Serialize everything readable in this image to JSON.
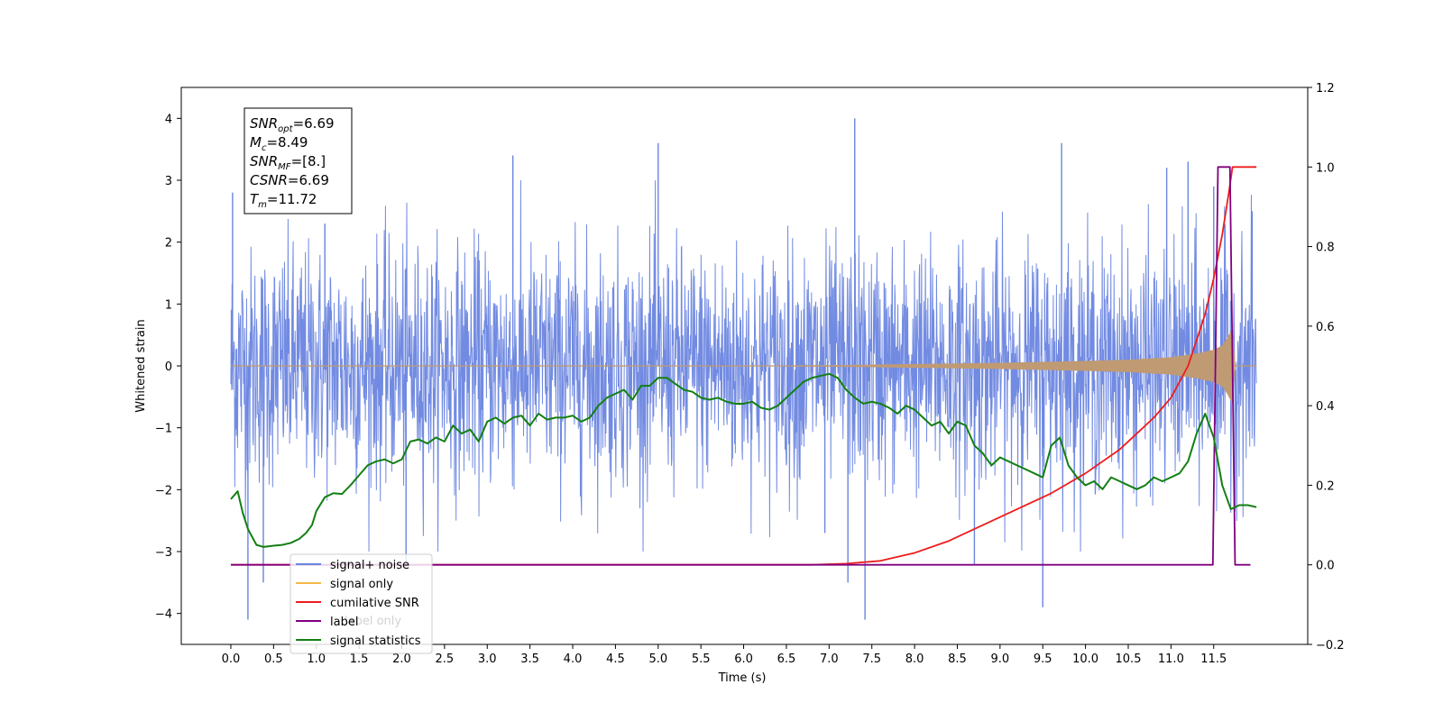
{
  "chart_data": {
    "type": "line",
    "xlabel": "Time (s)",
    "ylabel_left": "Whitened strain",
    "ylabel_right": "",
    "x_ticks": [
      "0.0",
      "0.5",
      "1.0",
      "1.5",
      "2.0",
      "2.5",
      "3.0",
      "3.5",
      "4.0",
      "4.5",
      "5.0",
      "5.5",
      "6.0",
      "6.5",
      "7.0",
      "7.5",
      "8.0",
      "8.5",
      "9.0",
      "9.5",
      "10.0",
      "10.5",
      "11.0",
      "11.5"
    ],
    "xlim": [
      -0.58,
      12.6
    ],
    "ylim_left": [
      -4.5,
      4.5
    ],
    "ylim_right": [
      -0.2,
      1.2
    ],
    "y_ticks_left": [
      "4",
      "3",
      "2",
      "1",
      "0",
      "−1",
      "−2",
      "−3",
      "−4"
    ],
    "y_ticks_right": [
      "1.2",
      "1.0",
      "0.8",
      "0.6",
      "0.4",
      "0.2",
      "0.0",
      "−0.2"
    ],
    "grid": false,
    "legend": {
      "placement": "lower-left",
      "entries": [
        {
          "label": "signal+ noise",
          "color": "#6a85e0"
        },
        {
          "label": "signal only",
          "color": "#f5b84a"
        },
        {
          "label": "cumilative SNR",
          "color": "#ee1c1c"
        },
        {
          "label": "label",
          "color": "#800080"
        },
        {
          "label": "signal statistics",
          "color": "#137f13"
        }
      ],
      "hidden_overlapped_text": [
        "label only"
      ]
    },
    "annotation": {
      "lines": [
        {
          "symbol": "SNR",
          "subscript": "opt",
          "value": "=6.69"
        },
        {
          "symbol": "M",
          "subscript": "c",
          "value": "=8.49"
        },
        {
          "symbol": "SNR",
          "subscript": "MF",
          "value": "=[8.]"
        },
        {
          "symbol": "CSNR",
          "subscript": "",
          "value": "=6.69"
        },
        {
          "symbol": "T",
          "subscript": "m",
          "value": "=11.72"
        }
      ]
    },
    "series": [
      {
        "name": "signal+ noise",
        "axis": "left",
        "color": "#6a85e0",
        "render": "noise_band",
        "x_range": [
          0.0,
          12.0
        ],
        "typical_range": [
          -2.0,
          2.0
        ],
        "spikes": [
          [
            0.02,
            2.8
          ],
          [
            0.2,
            -4.1
          ],
          [
            0.38,
            -3.5
          ],
          [
            1.1,
            2.3
          ],
          [
            2.05,
            -3.3
          ],
          [
            3.3,
            3.4
          ],
          [
            5.0,
            3.6
          ],
          [
            6.95,
            -2.7
          ],
          [
            7.3,
            4.0
          ],
          [
            7.42,
            -4.1
          ],
          [
            7.22,
            -3.5
          ],
          [
            8.7,
            -3.2
          ],
          [
            9.5,
            -3.9
          ],
          [
            9.72,
            3.6
          ],
          [
            10.95,
            3.2
          ],
          [
            11.2,
            3.3
          ],
          [
            11.5,
            2.9
          ],
          [
            11.95,
            2.5
          ]
        ]
      },
      {
        "name": "signal only",
        "axis": "left",
        "color": "#c09a72",
        "render": "chirp_envelope",
        "x": [
          0.0,
          7.0,
          8.0,
          9.0,
          10.0,
          10.5,
          11.0,
          11.3,
          11.5,
          11.6,
          11.66,
          11.7,
          11.72,
          11.75,
          12.0
        ],
        "envelope": [
          0.0,
          0.01,
          0.03,
          0.05,
          0.08,
          0.1,
          0.14,
          0.2,
          0.26,
          0.33,
          0.45,
          0.56,
          0.6,
          0.0,
          0.0
        ]
      },
      {
        "name": "cumilative SNR",
        "axis": "right",
        "color": "#ee1c1c",
        "x": [
          0.0,
          6.8,
          7.2,
          7.6,
          8.0,
          8.4,
          8.8,
          9.2,
          9.6,
          10.0,
          10.4,
          10.8,
          11.0,
          11.2,
          11.4,
          11.5,
          11.6,
          11.68,
          11.72,
          11.75,
          12.0
        ],
        "values": [
          0.0,
          0.0,
          0.003,
          0.01,
          0.03,
          0.06,
          0.1,
          0.14,
          0.18,
          0.23,
          0.29,
          0.37,
          0.42,
          0.5,
          0.63,
          0.72,
          0.83,
          0.94,
          1.0,
          1.0,
          1.0
        ]
      },
      {
        "name": "label",
        "axis": "right",
        "color": "#800080",
        "x": [
          0.0,
          11.49,
          11.55,
          11.69,
          11.75,
          11.93
        ],
        "values": [
          0.0,
          0.0,
          1.0,
          1.0,
          0.0,
          0.0
        ]
      },
      {
        "name": "signal statistics",
        "axis": "right",
        "color": "#137f13",
        "x": [
          0.0,
          0.08,
          0.14,
          0.2,
          0.3,
          0.38,
          0.5,
          0.6,
          0.7,
          0.8,
          0.88,
          0.95,
          1.0,
          1.1,
          1.2,
          1.3,
          1.4,
          1.5,
          1.6,
          1.7,
          1.8,
          1.9,
          2.0,
          2.1,
          2.2,
          2.3,
          2.4,
          2.5,
          2.6,
          2.7,
          2.8,
          2.9,
          3.0,
          3.1,
          3.2,
          3.3,
          3.4,
          3.5,
          3.6,
          3.7,
          3.8,
          3.9,
          4.0,
          4.1,
          4.2,
          4.3,
          4.4,
          4.5,
          4.6,
          4.7,
          4.8,
          4.9,
          5.0,
          5.1,
          5.2,
          5.3,
          5.4,
          5.5,
          5.6,
          5.7,
          5.8,
          5.9,
          6.0,
          6.1,
          6.2,
          6.3,
          6.4,
          6.5,
          6.6,
          6.7,
          6.8,
          6.9,
          7.0,
          7.1,
          7.2,
          7.3,
          7.4,
          7.5,
          7.6,
          7.7,
          7.8,
          7.9,
          8.0,
          8.1,
          8.2,
          8.3,
          8.4,
          8.5,
          8.6,
          8.7,
          8.8,
          8.9,
          9.0,
          9.1,
          9.2,
          9.3,
          9.4,
          9.5,
          9.6,
          9.7,
          9.8,
          9.9,
          10.0,
          10.1,
          10.2,
          10.3,
          10.4,
          10.5,
          10.6,
          10.7,
          10.8,
          10.9,
          11.0,
          11.1,
          11.2,
          11.3,
          11.4,
          11.5,
          11.6,
          11.7,
          11.8,
          11.9,
          12.0
        ],
        "values": [
          0.165,
          0.185,
          0.13,
          0.09,
          0.05,
          0.045,
          0.048,
          0.05,
          0.055,
          0.065,
          0.08,
          0.1,
          0.135,
          0.17,
          0.18,
          0.178,
          0.2,
          0.225,
          0.25,
          0.26,
          0.265,
          0.255,
          0.265,
          0.31,
          0.315,
          0.305,
          0.32,
          0.31,
          0.35,
          0.33,
          0.34,
          0.31,
          0.36,
          0.37,
          0.355,
          0.37,
          0.375,
          0.35,
          0.38,
          0.365,
          0.37,
          0.37,
          0.375,
          0.36,
          0.37,
          0.4,
          0.42,
          0.43,
          0.44,
          0.415,
          0.45,
          0.45,
          0.47,
          0.47,
          0.455,
          0.44,
          0.435,
          0.42,
          0.415,
          0.42,
          0.41,
          0.405,
          0.405,
          0.41,
          0.395,
          0.39,
          0.4,
          0.42,
          0.44,
          0.46,
          0.47,
          0.475,
          0.48,
          0.47,
          0.44,
          0.42,
          0.405,
          0.41,
          0.405,
          0.395,
          0.38,
          0.4,
          0.39,
          0.37,
          0.35,
          0.36,
          0.33,
          0.36,
          0.35,
          0.3,
          0.28,
          0.25,
          0.27,
          0.26,
          0.25,
          0.24,
          0.23,
          0.22,
          0.3,
          0.32,
          0.25,
          0.22,
          0.2,
          0.21,
          0.19,
          0.22,
          0.21,
          0.2,
          0.19,
          0.2,
          0.22,
          0.21,
          0.22,
          0.23,
          0.26,
          0.33,
          0.38,
          0.32,
          0.2,
          0.14,
          0.15,
          0.15,
          0.145
        ]
      }
    ]
  }
}
